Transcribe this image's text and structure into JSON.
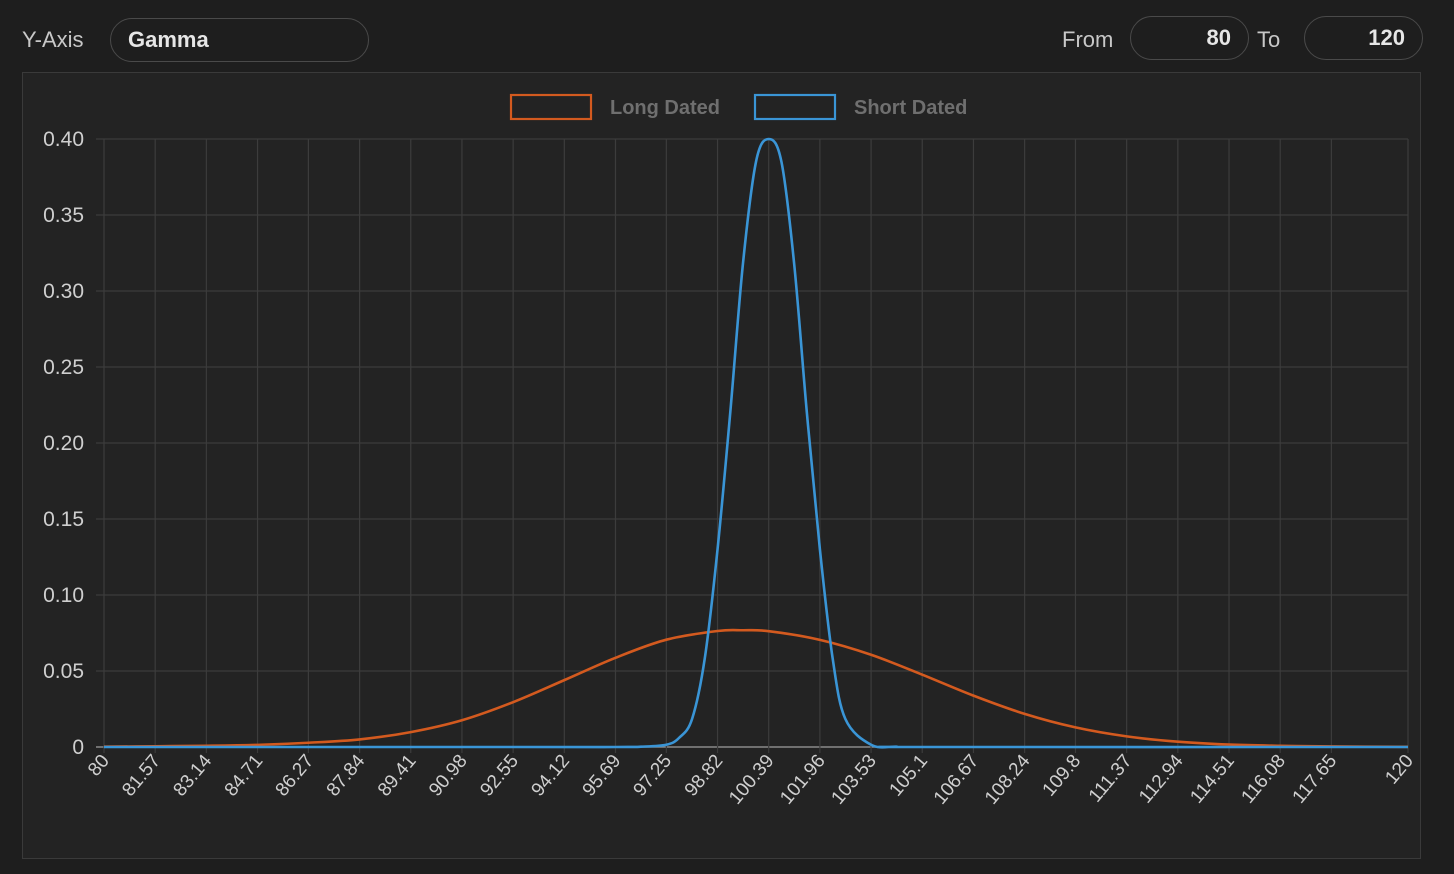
{
  "controls": {
    "yaxis_label": "Y-Axis",
    "yaxis_value": "Gamma",
    "from_label": "From",
    "from_value": "80",
    "to_label": "To",
    "to_value": "120"
  },
  "colors": {
    "long_dated": "#d35a1f",
    "short_dated": "#3a95d6",
    "grid": "#3c3c3c",
    "axis_text": "#cfcfcf",
    "legend_text": "#6f6f6f"
  },
  "chart_data": {
    "type": "line",
    "ylim": [
      0,
      0.4
    ],
    "yticks": [
      "0",
      "0.05",
      "0.10",
      "0.15",
      "0.20",
      "0.25",
      "0.30",
      "0.35",
      "0.40"
    ],
    "categories": [
      "80",
      "81.57",
      "83.14",
      "84.71",
      "86.27",
      "87.84",
      "89.41",
      "90.98",
      "92.55",
      "94.12",
      "95.69",
      "97.25",
      "98.82",
      "100.39",
      "101.96",
      "103.53",
      "105.1",
      "106.67",
      "108.24",
      "109.8",
      "111.37",
      "112.94",
      "114.51",
      "116.08",
      "117.65",
      "120"
    ],
    "legend_position": "top-center",
    "grid": true,
    "series": [
      {
        "name": "Long Dated",
        "color": "#d35a1f",
        "x": [
          80,
          81.57,
          83.14,
          84.71,
          86.27,
          87.84,
          89.41,
          90.98,
          92.55,
          94.12,
          95.69,
          97.25,
          98.82,
          99.6,
          100.39,
          101.96,
          103.53,
          105.1,
          106.67,
          108.24,
          109.8,
          111.37,
          112.94,
          114.51,
          116.08,
          117.65,
          120
        ],
        "values": [
          0.0002,
          0.0005,
          0.0008,
          0.0014,
          0.0028,
          0.005,
          0.0098,
          0.0176,
          0.0295,
          0.044,
          0.0587,
          0.0706,
          0.0763,
          0.0768,
          0.0762,
          0.0705,
          0.0607,
          0.0476,
          0.0338,
          0.0218,
          0.0129,
          0.007,
          0.0035,
          0.0016,
          0.0008,
          0.0004,
          0.0001
        ]
      },
      {
        "name": "Short Dated",
        "color": "#3a95d6",
        "x": [
          80,
          92.55,
          95.69,
          96.47,
          97.25,
          97.64,
          98.04,
          98.43,
          98.82,
          99.21,
          99.6,
          100.0,
          100.39,
          100.78,
          101.17,
          101.56,
          101.96,
          102.35,
          102.74,
          103.53,
          104.31,
          105.1,
          120
        ],
        "values": [
          0,
          0,
          0,
          0.0002,
          0.0015,
          0.006,
          0.0185,
          0.0585,
          0.13,
          0.22,
          0.318,
          0.385,
          0.4,
          0.385,
          0.318,
          0.22,
          0.13,
          0.0585,
          0.0185,
          0.0015,
          0.0002,
          0,
          0
        ]
      }
    ]
  }
}
